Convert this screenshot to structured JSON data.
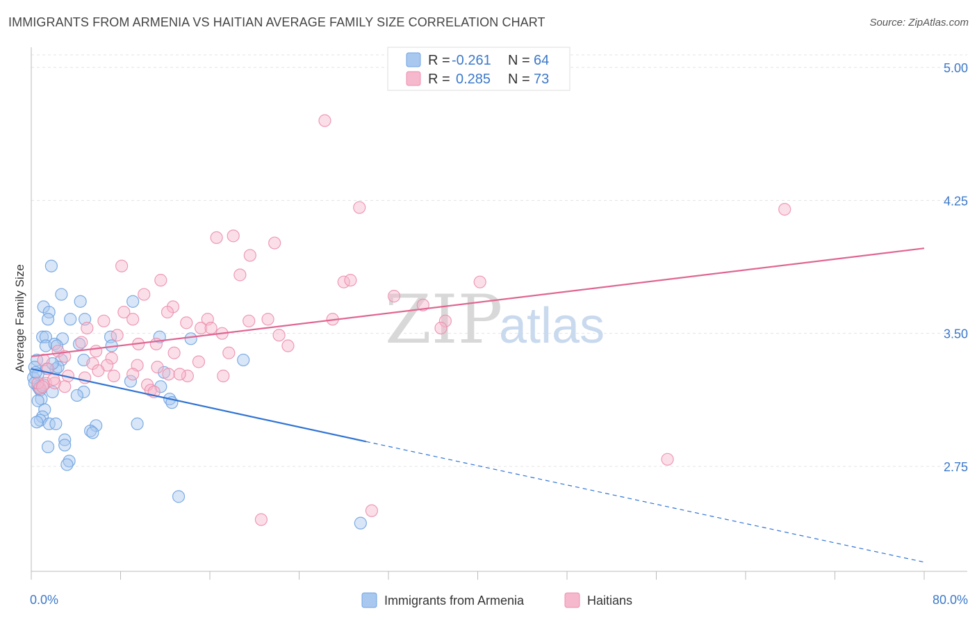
{
  "title": "IMMIGRANTS FROM ARMENIA VS HAITIAN AVERAGE FAMILY SIZE CORRELATION CHART",
  "source": "Source: ZipAtlas.com",
  "watermark": {
    "part1": "ZIP",
    "part2": "atlas"
  },
  "legend": {
    "rows": [
      {
        "r_label": "R =",
        "r_value": "-0.261",
        "n_label": "N =",
        "n_value": "64",
        "color": "#a8c8f0"
      },
      {
        "r_label": "R =",
        "r_value": "0.285",
        "n_label": "N =",
        "n_value": "73",
        "color": "#f6b8cc"
      }
    ]
  },
  "chart_data": {
    "type": "scatter",
    "title": "IMMIGRANTS FROM ARMENIA VS HAITIAN AVERAGE FAMILY SIZE CORRELATION CHART",
    "xlabel": "",
    "ylabel": "Average Family Size",
    "xlim": [
      0,
      80
    ],
    "ylim": [
      2.0,
      5.1
    ],
    "x_tick_labels": [
      "0.0%",
      "80.0%"
    ],
    "y_ticks": [
      2.75,
      3.5,
      4.25,
      5.0
    ],
    "y_tick_labels": [
      "2.75",
      "3.50",
      "4.25",
      "5.00"
    ],
    "grid": true,
    "legend_position": "top-center",
    "series": [
      {
        "name": "Immigrants from Armenia",
        "color": "#6fa3e0",
        "fill": "#a8c8f0",
        "line_color": "#2f73d3",
        "trend": {
          "x0": 0,
          "y0": 3.3,
          "x1": 30,
          "y1": 2.89,
          "dash_to_x": 80,
          "dash_to_y": 2.21
        },
        "points": [
          [
            1.8,
            3.88
          ],
          [
            2.7,
            3.72
          ],
          [
            4.4,
            3.68
          ],
          [
            1.1,
            3.65
          ],
          [
            1.6,
            3.62
          ],
          [
            1.5,
            3.58
          ],
          [
            3.5,
            3.58
          ],
          [
            4.8,
            3.58
          ],
          [
            9.1,
            3.68
          ],
          [
            1.0,
            3.48
          ],
          [
            1.3,
            3.48
          ],
          [
            2.8,
            3.47
          ],
          [
            4.3,
            3.44
          ],
          [
            7.1,
            3.48
          ],
          [
            7.2,
            3.43
          ],
          [
            11.5,
            3.48
          ],
          [
            14.3,
            3.47
          ],
          [
            1.3,
            3.43
          ],
          [
            2.1,
            3.44
          ],
          [
            2.3,
            3.43
          ],
          [
            2.7,
            3.35
          ],
          [
            0.5,
            3.35
          ],
          [
            4.7,
            3.35
          ],
          [
            19.0,
            3.35
          ],
          [
            0.3,
            3.31
          ],
          [
            1.4,
            3.3
          ],
          [
            2.2,
            3.3
          ],
          [
            11.9,
            3.28
          ],
          [
            0.2,
            3.25
          ],
          [
            0.6,
            3.27
          ],
          [
            8.9,
            3.23
          ],
          [
            11.6,
            3.2
          ],
          [
            0.6,
            3.2
          ],
          [
            0.8,
            3.18
          ],
          [
            1.9,
            3.17
          ],
          [
            4.7,
            3.17
          ],
          [
            4.1,
            3.15
          ],
          [
            0.9,
            3.13
          ],
          [
            12.4,
            3.13
          ],
          [
            12.6,
            3.11
          ],
          [
            0.6,
            3.12
          ],
          [
            1.2,
            3.07
          ],
          [
            1.0,
            3.03
          ],
          [
            0.8,
            3.01
          ],
          [
            0.5,
            3.0
          ],
          [
            1.6,
            2.99
          ],
          [
            2.2,
            2.99
          ],
          [
            5.8,
            2.98
          ],
          [
            9.5,
            2.99
          ],
          [
            5.3,
            2.95
          ],
          [
            5.5,
            2.94
          ],
          [
            3.0,
            2.9
          ],
          [
            3.0,
            2.87
          ],
          [
            1.5,
            2.86
          ],
          [
            3.4,
            2.78
          ],
          [
            3.2,
            2.76
          ],
          [
            13.2,
            2.58
          ],
          [
            29.5,
            2.43
          ],
          [
            0.3,
            3.22
          ],
          [
            0.7,
            3.19
          ],
          [
            1.1,
            3.21
          ],
          [
            0.4,
            3.28
          ],
          [
            2.4,
            3.31
          ],
          [
            1.9,
            3.33
          ]
        ]
      },
      {
        "name": "Haitians",
        "color": "#ec8fad",
        "fill": "#f6b8cc",
        "line_color": "#e06592",
        "trend": {
          "x0": 0,
          "y0": 3.37,
          "x1": 80,
          "y1": 3.98
        },
        "points": [
          [
            26.3,
            4.7
          ],
          [
            29.4,
            4.21
          ],
          [
            67.5,
            4.2
          ],
          [
            16.6,
            4.04
          ],
          [
            18.1,
            4.05
          ],
          [
            21.8,
            4.01
          ],
          [
            19.6,
            3.94
          ],
          [
            8.1,
            3.88
          ],
          [
            11.6,
            3.8
          ],
          [
            18.7,
            3.83
          ],
          [
            28.0,
            3.79
          ],
          [
            28.6,
            3.8
          ],
          [
            40.2,
            3.79
          ],
          [
            10.1,
            3.72
          ],
          [
            32.5,
            3.71
          ],
          [
            35.1,
            3.66
          ],
          [
            12.7,
            3.65
          ],
          [
            8.3,
            3.62
          ],
          [
            12.2,
            3.62
          ],
          [
            6.5,
            3.57
          ],
          [
            9.1,
            3.58
          ],
          [
            13.9,
            3.56
          ],
          [
            15.8,
            3.58
          ],
          [
            19.5,
            3.57
          ],
          [
            21.2,
            3.58
          ],
          [
            27.0,
            3.58
          ],
          [
            37.1,
            3.57
          ],
          [
            5.0,
            3.53
          ],
          [
            15.2,
            3.53
          ],
          [
            16.1,
            3.53
          ],
          [
            17.1,
            3.5
          ],
          [
            22.2,
            3.49
          ],
          [
            36.7,
            3.53
          ],
          [
            7.7,
            3.49
          ],
          [
            4.5,
            3.45
          ],
          [
            9.6,
            3.44
          ],
          [
            11.2,
            3.44
          ],
          [
            23.0,
            3.43
          ],
          [
            2.4,
            3.4
          ],
          [
            5.8,
            3.4
          ],
          [
            12.8,
            3.39
          ],
          [
            17.7,
            3.39
          ],
          [
            3.0,
            3.37
          ],
          [
            7.2,
            3.36
          ],
          [
            1.1,
            3.35
          ],
          [
            5.5,
            3.33
          ],
          [
            6.8,
            3.32
          ],
          [
            9.5,
            3.32
          ],
          [
            11.3,
            3.31
          ],
          [
            15.0,
            3.34
          ],
          [
            1.5,
            3.3
          ],
          [
            3.3,
            3.26
          ],
          [
            4.8,
            3.25
          ],
          [
            7.4,
            3.26
          ],
          [
            9.1,
            3.27
          ],
          [
            12.3,
            3.27
          ],
          [
            14.0,
            3.26
          ],
          [
            17.2,
            3.26
          ],
          [
            1.3,
            3.22
          ],
          [
            10.4,
            3.21
          ],
          [
            2.1,
            3.22
          ],
          [
            3.0,
            3.2
          ],
          [
            10.7,
            3.18
          ],
          [
            11.0,
            3.17
          ],
          [
            0.8,
            3.19
          ],
          [
            0.6,
            3.22
          ],
          [
            1.0,
            3.2
          ],
          [
            2.0,
            3.24
          ],
          [
            57.0,
            2.79
          ],
          [
            30.5,
            2.5
          ],
          [
            20.6,
            2.45
          ],
          [
            6.0,
            3.29
          ],
          [
            13.3,
            3.27
          ]
        ]
      }
    ]
  }
}
